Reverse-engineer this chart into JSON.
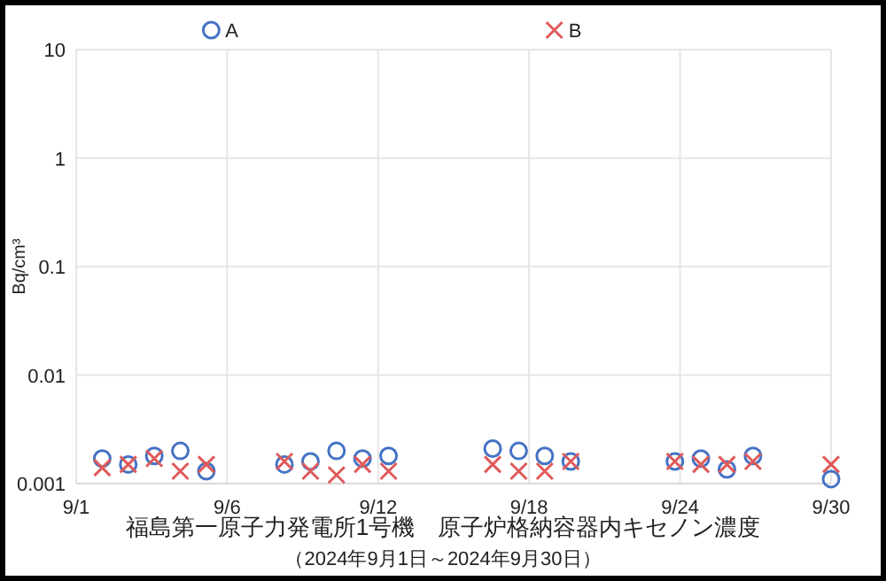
{
  "chart_data": {
    "type": "scatter",
    "title": "福島第一原子力発電所1号機　原子炉格納容器内キセノン濃度",
    "subtitle": "（2024年9月1日～2024年9月30日）",
    "ylabel": "Bq/cm³",
    "x": [
      "2024-09-02",
      "2024-09-03",
      "2024-09-04",
      "2024-09-05",
      "2024-09-06",
      "2024-09-09",
      "2024-09-10",
      "2024-09-11",
      "2024-09-12",
      "2024-09-13",
      "2024-09-17",
      "2024-09-18",
      "2024-09-19",
      "2024-09-20",
      "2024-09-24",
      "2024-09-25",
      "2024-09-26",
      "2024-09-27",
      "2024-09-30"
    ],
    "series": [
      {
        "name": "A",
        "color": "#4472c4",
        "marker": "circle",
        "values": [
          0.0017,
          0.0015,
          0.0018,
          0.002,
          0.0013,
          0.0015,
          0.0016,
          0.002,
          0.0017,
          0.0018,
          0.0021,
          0.002,
          0.0018,
          0.0016,
          0.0016,
          0.0017,
          0.00135,
          0.0018,
          0.0011
        ]
      },
      {
        "name": "B",
        "color": "#e05a5a",
        "marker": "cross",
        "values": [
          0.0014,
          0.0015,
          0.0017,
          0.0013,
          0.0015,
          0.0016,
          0.0013,
          0.0012,
          0.0015,
          0.0013,
          0.0015,
          0.0013,
          0.0013,
          0.0016,
          0.0016,
          0.0015,
          0.0015,
          0.0016,
          0.0015
        ]
      }
    ],
    "xlim": [
      "2024-09-01",
      "2024-09-30"
    ],
    "xticks": [
      {
        "value": "2024-09-01",
        "label": "9/1"
      },
      {
        "value": "2024-09-06T19:12",
        "label": "9/6"
      },
      {
        "value": "2024-09-12T14:24",
        "label": "9/12"
      },
      {
        "value": "2024-09-18T09:36",
        "label": "9/18"
      },
      {
        "value": "2024-09-24T04:48",
        "label": "9/24"
      },
      {
        "value": "2024-09-30",
        "label": "9/30"
      }
    ],
    "ylim": [
      0.001,
      10
    ],
    "yticks": [
      10,
      1,
      0.1,
      0.01,
      0.001
    ],
    "log": "y",
    "grid": true,
    "legend": "top"
  }
}
